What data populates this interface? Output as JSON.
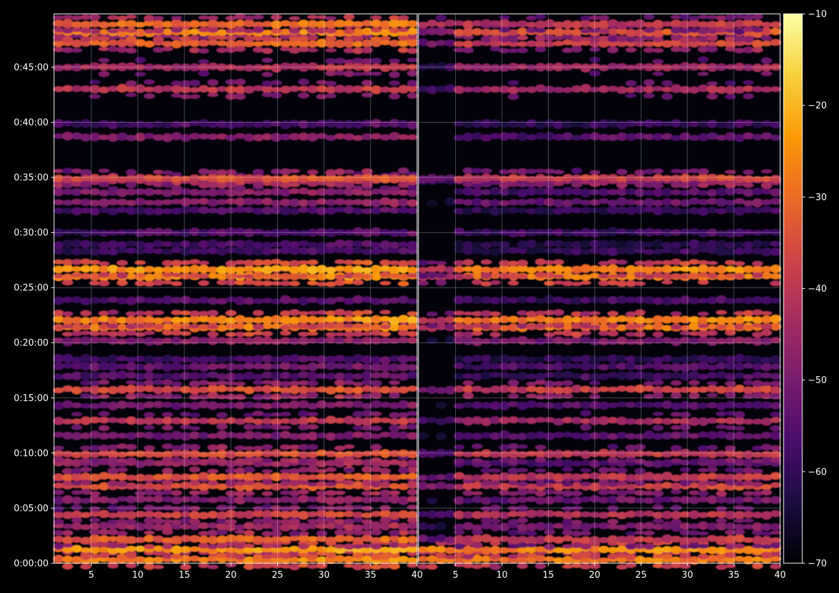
{
  "chart_data": {
    "type": "heatmap",
    "title": "",
    "colormap": "inferno",
    "background": "#000000",
    "grid": true,
    "panels": [
      {
        "name": "",
        "xlim": [
          1,
          40
        ],
        "x_ticks": [
          5,
          10,
          15,
          20,
          25,
          30,
          35,
          40
        ],
        "x_tick_labels": [
          "5",
          "10",
          "15",
          "20",
          "25",
          "30",
          "35",
          "40"
        ]
      },
      {
        "name": "",
        "xlim": [
          1,
          40
        ],
        "x_ticks": [
          5,
          10,
          15,
          20,
          25,
          30,
          35,
          40
        ],
        "x_tick_labels": [
          "5",
          "10",
          "15",
          "20",
          "25",
          "30",
          "35",
          "40"
        ]
      }
    ],
    "y_axis": {
      "unit": "seconds",
      "ylim": [
        0,
        2990
      ],
      "ticks": [
        0,
        300,
        600,
        900,
        1200,
        1500,
        1800,
        2100,
        2400,
        2700
      ],
      "tick_labels": [
        "0:00:00",
        "0:05:00",
        "0:10:00",
        "0:15:00",
        "0:20:00",
        "0:25:00",
        "0:30:00",
        "0:35:00",
        "0:40:00",
        "0:45:00"
      ]
    },
    "colorbar": {
      "range": [
        -70,
        -10
      ],
      "ticks": [
        -10,
        -20,
        -30,
        -40,
        -50,
        -60,
        -70
      ],
      "tick_labels": [
        "−10",
        "−20",
        "−30",
        "−40",
        "−50",
        "−60",
        "−70"
      ],
      "stops": [
        "#000004",
        "#1b0c41",
        "#4a0c6b",
        "#781c6d",
        "#a52c60",
        "#cf4446",
        "#ed6925",
        "#fb9b06",
        "#f7d13d",
        "#fcffa4"
      ]
    },
    "bands": [
      {
        "y": 20,
        "left": -27,
        "right": -28
      },
      {
        "y": 75,
        "left": -24,
        "right": -26
      },
      {
        "y": 130,
        "left": -32,
        "right": -40
      },
      {
        "y": 200,
        "left": -45,
        "right": -50
      },
      {
        "y": 265,
        "left": -38,
        "right": -42
      },
      {
        "y": 345,
        "left": -48,
        "right": -52
      },
      {
        "y": 420,
        "left": -35,
        "right": -38
      },
      {
        "y": 470,
        "left": -33,
        "right": -40
      },
      {
        "y": 545,
        "left": -45,
        "right": -55
      },
      {
        "y": 595,
        "left": -36,
        "right": -40
      },
      {
        "y": 695,
        "left": -50,
        "right": -54
      },
      {
        "y": 775,
        "left": -40,
        "right": -44
      },
      {
        "y": 860,
        "left": -50,
        "right": -55
      },
      {
        "y": 945,
        "left": -35,
        "right": -38
      },
      {
        "y": 1020,
        "left": -55,
        "right": -58
      },
      {
        "y": 1070,
        "left": -52,
        "right": -56
      },
      {
        "y": 1110,
        "left": -57,
        "right": -60
      },
      {
        "y": 1210,
        "left": -48,
        "right": -50
      },
      {
        "y": 1285,
        "left": -28,
        "right": -30
      },
      {
        "y": 1325,
        "left": -26,
        "right": -28
      },
      {
        "y": 1430,
        "left": -55,
        "right": -58
      },
      {
        "y": 1560,
        "left": -25,
        "right": -28
      },
      {
        "y": 1600,
        "left": -24,
        "right": -27
      },
      {
        "y": 1700,
        "left": -58,
        "right": -60
      },
      {
        "y": 1735,
        "left": -57,
        "right": -62
      },
      {
        "y": 1800,
        "left": -55,
        "right": -58
      },
      {
        "y": 1920,
        "left": -56,
        "right": -60
      },
      {
        "y": 1965,
        "left": -48,
        "right": -52
      },
      {
        "y": 2020,
        "left": -48,
        "right": -56
      },
      {
        "y": 2080,
        "left": -42,
        "right": -48
      },
      {
        "y": 2095,
        "left": -35,
        "right": -38
      },
      {
        "y": 2320,
        "left": -48,
        "right": -55
      },
      {
        "y": 2390,
        "left": -56,
        "right": -60
      },
      {
        "y": 2580,
        "left": -40,
        "right": -44
      },
      {
        "y": 2700,
        "left": -42,
        "right": -45
      },
      {
        "y": 2830,
        "left": -32,
        "right": -38
      },
      {
        "y": 2890,
        "left": -27,
        "right": -35
      },
      {
        "y": 2935,
        "left": -30,
        "right": -40
      }
    ]
  }
}
